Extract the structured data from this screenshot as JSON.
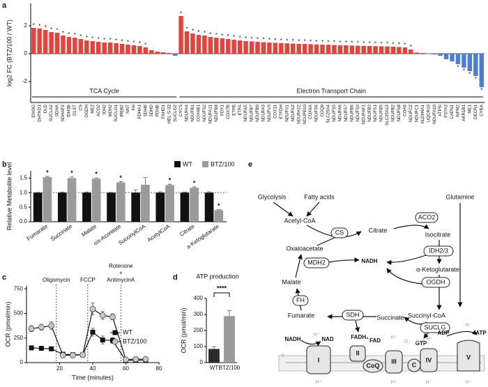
{
  "chart_data": [
    {
      "type": "bar",
      "panel": "a",
      "ylabel": "log2 FC (BTZ/100 / WT)",
      "ylim": [
        -3.5,
        3.6
      ],
      "yticks": [
        -2,
        0,
        2
      ],
      "colors": {
        "up": "#e8403a",
        "down": "#4a7fd4"
      },
      "series": [
        {
          "name": "TCA Cycle",
          "categories": [
            "IDH3G",
            "DHTKD1",
            "DLD",
            "SUCLA2",
            "SDHA",
            "SDHAF2",
            "IDH3B",
            "DLST",
            "CS",
            "OGDH",
            "ME2",
            "ACO2",
            "IDH2",
            "MDH2",
            "SUCLG1",
            "IREB2",
            "NNT",
            "FH",
            "PDHA1",
            "SDHB",
            "SDHD",
            "PDHB",
            "FAHD1",
            "HEL-S-32",
            "SUCLG2"
          ],
          "values": [
            1.85,
            1.8,
            1.7,
            1.55,
            1.5,
            1.3,
            1.2,
            1.15,
            1.05,
            0.95,
            0.9,
            0.85,
            0.8,
            0.8,
            0.75,
            0.7,
            0.65,
            0.6,
            0.55,
            0.45,
            0.25,
            0.15,
            0.1,
            0.05,
            -0.15
          ],
          "significance": [
            "*",
            "*",
            "*",
            "*",
            "*",
            "*",
            "*",
            "*",
            "*",
            "*",
            "*",
            "*",
            "*",
            "*",
            "*",
            "*",
            "*",
            "*",
            "*",
            "*",
            null,
            null,
            null,
            null,
            null
          ]
        },
        {
          "name": "Electron Transport Chain",
          "categories": [
            "CYCS",
            "NDUFA4",
            "NDUFB1",
            "COX6B1",
            "NDUFS2",
            "NDUFA11",
            "NDUFB8",
            "FDX1",
            "COX7B",
            "ETFB",
            "ETFA",
            "NDUFA5",
            "NDUFB7",
            "NDUFB9",
            "NDUFA3",
            "NDUFV3",
            "COX11",
            "ETFDH",
            "NDUFV1",
            "NDUFA2",
            "NDUFA12",
            "NDUFB10",
            "COX6A",
            "NDUFS6",
            "COQ9",
            "SLC25A4",
            "NDUFS5",
            "NDUFA6",
            "NDUFA7",
            "NDUFB6",
            "NDUFS3",
            "NDUFAF1",
            "NDUFB3",
            "NDUFS1",
            "NDUFB5",
            "SLC25A13",
            "NDUFB2",
            "NDUFA8",
            "COA6",
            "NDUFC2",
            "NDUFC1",
            "ALDH4A1",
            "UQCR10",
            "NDUFA10",
            "ATP5I",
            "FSTA3",
            "CAPN1",
            "AIFM2",
            "AKR1B1",
            "ME1",
            "DECR1",
            "CYBA"
          ],
          "values": [
            2.7,
            1.6,
            1.45,
            1.35,
            1.3,
            1.2,
            1.15,
            1.1,
            1.05,
            1.0,
            0.95,
            0.9,
            0.88,
            0.85,
            0.82,
            0.8,
            0.78,
            0.76,
            0.74,
            0.72,
            0.7,
            0.7,
            0.68,
            0.66,
            0.65,
            0.64,
            0.62,
            0.6,
            0.6,
            0.58,
            0.57,
            0.56,
            0.55,
            0.54,
            0.53,
            0.52,
            0.5,
            0.48,
            0.45,
            0.3,
            0.08,
            0.05,
            0.02,
            -0.05,
            -0.15,
            -0.4,
            -0.55,
            -0.75,
            -1.0,
            -1.25,
            -1.6,
            -2.4
          ],
          "significance": [
            "*",
            "*",
            "*",
            "*",
            "*",
            "*",
            "*",
            "*",
            "*",
            "*",
            "*",
            "*",
            "*",
            "*",
            "*",
            "*",
            "*",
            "*",
            "*",
            "*",
            "*",
            "*",
            "*",
            "*",
            "*",
            "*",
            "*",
            "*",
            "*",
            "*",
            "*",
            "*",
            "*",
            "*",
            "*",
            "*",
            "*",
            "*",
            "*",
            "*",
            null,
            null,
            null,
            null,
            null,
            null,
            null,
            "*",
            "*",
            "*",
            "*",
            "*"
          ]
        }
      ]
    },
    {
      "type": "grouped_bar",
      "panel": "b",
      "ylabel": "Relative Metabolite level",
      "ylim": [
        0,
        1.75
      ],
      "yticks": [
        {
          "value": 0,
          "label": "0.0"
        },
        {
          "value": 0.5,
          "label": "0.5"
        },
        {
          "value": 1,
          "label": "1.0"
        },
        {
          "value": 1.5,
          "label": "1.5"
        }
      ],
      "reference_line": 1,
      "categories": [
        "Fumarate",
        "Succinate",
        "Malate",
        "cis-Aconitate",
        "SuccinylCoA",
        "AcetylCoA",
        "Citrate",
        "a-Ketoglutarate"
      ],
      "series": [
        {
          "name": "WT",
          "color": "#111111",
          "values": [
            1,
            1,
            1,
            1,
            1,
            1,
            1,
            1
          ],
          "errors": [
            0.01,
            0.02,
            0.02,
            0.01,
            0.1,
            0.03,
            0.02,
            0.03
          ]
        },
        {
          "name": "BTZ/100",
          "color": "#9a9a9a",
          "values": [
            1.53,
            1.5,
            1.48,
            1.35,
            1.27,
            1.26,
            1.17,
            0.4
          ],
          "errors": [
            0.03,
            0.04,
            0.03,
            0.03,
            0.25,
            0.03,
            0.03,
            0.02
          ],
          "significance": [
            "*",
            "*",
            "*",
            "*",
            null,
            "*",
            "*",
            "*"
          ]
        }
      ]
    },
    {
      "type": "line",
      "panel": "c",
      "xlabel": "Time (minutes)",
      "ylabel": "OCR (pmol/min)",
      "xlim": [
        0,
        80
      ],
      "xticks": [
        20,
        40,
        60,
        80
      ],
      "ylim": [
        0,
        780
      ],
      "yticks": [
        0,
        250,
        500,
        750
      ],
      "legend": "right",
      "x": [
        3,
        9,
        15,
        22,
        28,
        34,
        40,
        46,
        52,
        60,
        66,
        72
      ],
      "series": [
        {
          "name": "WT",
          "color": "#111111",
          "marker": "square",
          "values": [
            150,
            145,
            140,
            85,
            80,
            80,
            310,
            230,
            225,
            20,
            25,
            25
          ],
          "errors": [
            20,
            15,
            15,
            10,
            10,
            10,
            40,
            40,
            30,
            5,
            5,
            5
          ]
        },
        {
          "name": "BTZ/100",
          "color": "#c8c8c8",
          "marker": "circle",
          "values": [
            345,
            360,
            375,
            75,
            75,
            80,
            545,
            480,
            465,
            30,
            35,
            35
          ],
          "errors": [
            30,
            30,
            40,
            10,
            10,
            10,
            60,
            40,
            30,
            5,
            5,
            5
          ]
        }
      ],
      "annotations": [
        {
          "x": 18,
          "label": [
            "Oligomycin"
          ]
        },
        {
          "x": 37,
          "label": [
            "FCCP"
          ]
        },
        {
          "x": 57,
          "label": [
            "Rotenone",
            "+",
            "AntimycinA"
          ]
        }
      ]
    },
    {
      "type": "bar",
      "panel": "d",
      "title": "ATP production",
      "ylabel": "OCR (pmol/min)",
      "ylim": [
        0,
        400
      ],
      "yticks": [
        0,
        100,
        200,
        300,
        400
      ],
      "categories": [
        "WT",
        "BTZ/100"
      ],
      "values": [
        85,
        290
      ],
      "errors": [
        15,
        35
      ],
      "colors": [
        "#2b2b2b",
        "#9a9a9a"
      ],
      "comparison_label": "****"
    }
  ],
  "diagram": {
    "panel": "e",
    "metabolites": {
      "glycolysis": "Glycolysis",
      "fatty_acids": "Fatty acids",
      "glutamine": "Glutamine",
      "acetyl_coa": "Acetyl-CoA",
      "citrate": "Citrate",
      "isocitrate": "Isocitrate",
      "oxaloacetate": "Oxaloacetate",
      "malate": "Malate",
      "fumarate": "Fumarate",
      "succinate": "Succinate",
      "succinyl_coa": "Succinyl-CoA",
      "akg": "α-Ketoglutarate",
      "nadh": "NADH",
      "fadh2": "FADH₂",
      "gtp": "GTP"
    },
    "enzymes": {
      "cs": "CS",
      "aco2": "ACO2",
      "idh": "IDH2/3",
      "ogdh": "OGDH",
      "suclg": "SUCLG",
      "sdh": "SDH",
      "fh": "FH",
      "mdh2": "MDH2"
    },
    "etc": {
      "nadh": "NADH",
      "nad": "NAD",
      "fad": "FAD",
      "c1": "I",
      "c2": "II",
      "coq": "CoQ",
      "c3": "III",
      "cytc": "C",
      "c4": "IV",
      "c5": "V",
      "adp": "ADP",
      "atp": "ATP",
      "o2": "O₂",
      "h2o": "H₂O",
      "proton": "H⁺",
      "electron": "e"
    }
  }
}
